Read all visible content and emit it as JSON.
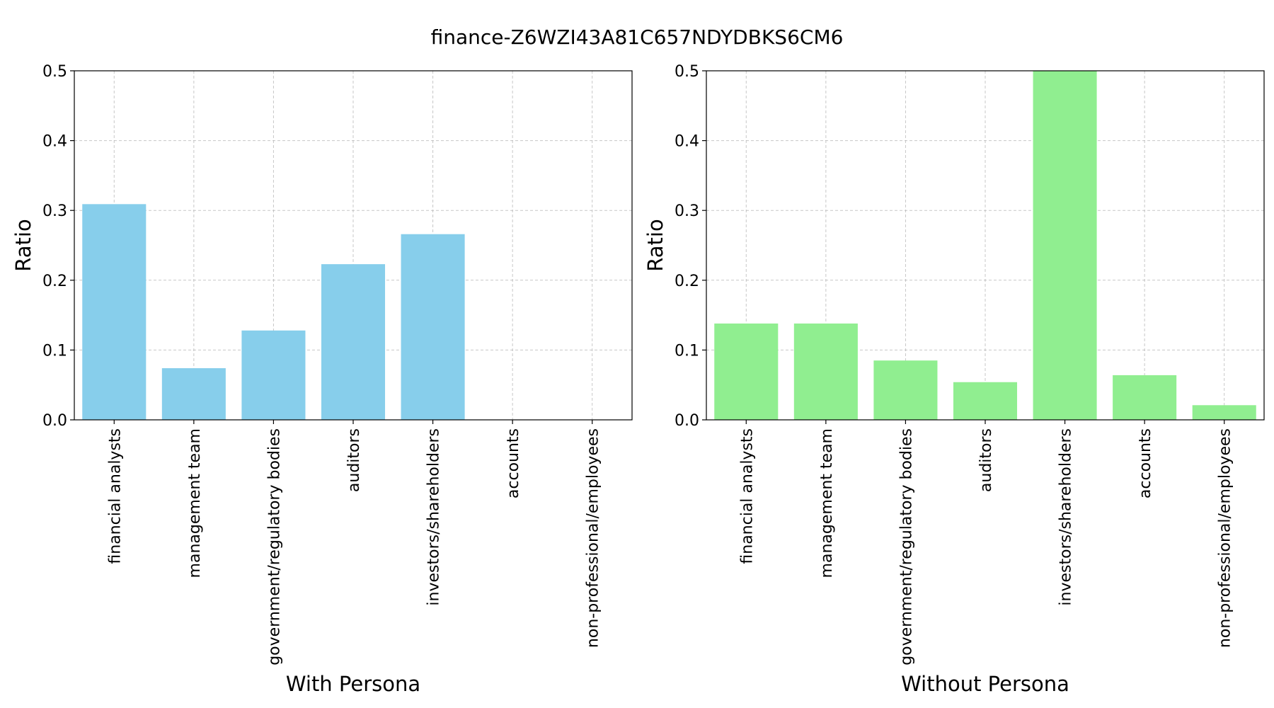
{
  "figure": {
    "suptitle": "finance-Z6WZI43A81C657NDYDBKS6CM6"
  },
  "chart_data": [
    {
      "type": "bar",
      "xlabel": "With Persona",
      "ylabel": "Ratio",
      "ylim": [
        0,
        0.5
      ],
      "yticks": [
        "0.0",
        "0.1",
        "0.2",
        "0.3",
        "0.4",
        "0.5"
      ],
      "grid": true,
      "categories": [
        "financial analysts",
        "management team",
        "government/regulatory bodies",
        "auditors",
        "investors/shareholders",
        "accounts",
        "non-professional/employees"
      ],
      "values": [
        0.309,
        0.074,
        0.128,
        0.223,
        0.266,
        0.0,
        0.0
      ],
      "color": "#87ceeb"
    },
    {
      "type": "bar",
      "xlabel": "Without Persona",
      "ylabel": "Ratio",
      "ylim": [
        0,
        0.5
      ],
      "yticks": [
        "0.0",
        "0.1",
        "0.2",
        "0.3",
        "0.4",
        "0.5"
      ],
      "grid": true,
      "categories": [
        "financial analysts",
        "management team",
        "government/regulatory bodies",
        "auditors",
        "investors/shareholders",
        "accounts",
        "non-professional/employees"
      ],
      "values": [
        0.138,
        0.138,
        0.085,
        0.054,
        0.5,
        0.064,
        0.021
      ],
      "color": "#90ee90"
    }
  ]
}
